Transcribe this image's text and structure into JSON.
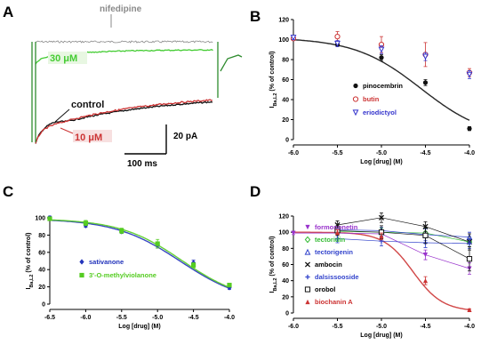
{
  "panels": {
    "A": {
      "letter": "A",
      "labels": {
        "nifedipine": "nifedipine",
        "c30": "30 μM",
        "control": "control",
        "c10": "10 μM"
      },
      "scalebar": {
        "current": "20 pA",
        "time": "100 ms"
      },
      "colors": {
        "nifedipine": "#8a8a8a",
        "c30": "#44cc33",
        "control": "#111111",
        "c10": "#cc3333"
      }
    },
    "B": {
      "letter": "B"
    },
    "C": {
      "letter": "C"
    },
    "D": {
      "letter": "D"
    }
  },
  "chart_data": [
    {
      "panel": "B",
      "type": "scatter",
      "ylabel_main": "I",
      "ylabel_sub": "Ba,L2",
      "ylabel_rest": " (% of control)",
      "xlabel": "Log [drug] (M)",
      "xlim": [
        -6.0,
        -4.0
      ],
      "ylim": [
        0,
        120
      ],
      "xticks": [
        -6.0,
        -5.5,
        -5.0,
        -4.5,
        -4.0
      ],
      "xtick_labels": [
        "-6.0",
        "-5.5",
        "-5.0",
        "-4.5",
        "-4.0"
      ],
      "yticks": [
        0,
        20,
        40,
        60,
        80,
        100,
        120
      ],
      "legend_position": "center-right",
      "series": [
        {
          "name": "pinocembrin",
          "color": "#111111",
          "marker": "circle-filled",
          "fit": true,
          "x": [
            -6.0,
            -5.5,
            -5.0,
            -4.5,
            -4.0
          ],
          "y": [
            102,
            95,
            82,
            57,
            11
          ],
          "err": [
            2,
            2,
            3,
            3,
            2
          ],
          "fit_curve": {
            "top": 102,
            "bottom": 0,
            "logec50": -4.55,
            "hill": 1.15
          }
        },
        {
          "name": "butin",
          "color": "#cc3333",
          "marker": "circle-open",
          "fit": false,
          "x": [
            -6.0,
            -5.5,
            -5.0,
            -4.5,
            -4.0
          ],
          "y": [
            101,
            103,
            95,
            85,
            67
          ],
          "err": [
            2,
            5,
            8,
            12,
            4
          ]
        },
        {
          "name": "eriodictyol",
          "color": "#3333cc",
          "marker": "triangle-down-open",
          "fit": false,
          "x": [
            -6.0,
            -5.5,
            -5.0,
            -4.5,
            -4.0
          ],
          "y": [
            102,
            96,
            90,
            83,
            65
          ],
          "err": [
            2,
            3,
            4,
            4,
            4
          ]
        }
      ]
    },
    {
      "panel": "C",
      "type": "scatter",
      "ylabel_main": "I",
      "ylabel_sub": "Ba,L2",
      "ylabel_rest": " (% of control)",
      "xlabel": "Log [drug] (M)",
      "xlim": [
        -6.5,
        -4.0
      ],
      "ylim": [
        0,
        100
      ],
      "xticks": [
        -6.5,
        -6.0,
        -5.5,
        -5.0,
        -4.5,
        -4.0
      ],
      "xtick_labels": [
        "-6.5",
        "-6.0",
        "-5.5",
        "-5.0",
        "-4.5",
        "-4.0"
      ],
      "yticks": [
        0,
        20,
        40,
        60,
        80,
        100
      ],
      "legend_position": "bottom-left",
      "series": [
        {
          "name": "sativanone",
          "color": "#2233bb",
          "marker": "diamond-filled",
          "fit": true,
          "x": [
            -6.5,
            -6.0,
            -5.5,
            -5.0,
            -4.5,
            -4.0
          ],
          "y": [
            100,
            91,
            84,
            68,
            48,
            19
          ],
          "err": [
            2,
            2,
            2,
            3,
            3,
            2
          ],
          "fit_curve": {
            "top": 99,
            "bottom": 0,
            "logec50": -4.68,
            "hill": 0.95
          }
        },
        {
          "name": "3'-O-methylviolanone",
          "color": "#55cc22",
          "marker": "square-filled",
          "fit": true,
          "x": [
            -6.5,
            -6.0,
            -5.5,
            -5.0,
            -4.5,
            -4.0
          ],
          "y": [
            99,
            94,
            85,
            70,
            45,
            22
          ],
          "err": [
            2,
            3,
            3,
            5,
            3,
            2
          ],
          "fit_curve": {
            "top": 99,
            "bottom": 2,
            "logec50": -4.66,
            "hill": 1.0
          }
        }
      ]
    },
    {
      "panel": "D",
      "type": "scatter",
      "ylabel_main": "I",
      "ylabel_sub": "Ba,L2",
      "ylabel_rest": " (% of control)",
      "xlabel": "Log [drug] (M)",
      "xlim": [
        -6.0,
        -4.0
      ],
      "ylim": [
        0,
        120
      ],
      "xticks": [
        -6.0,
        -5.5,
        -5.0,
        -4.5,
        -4.0
      ],
      "xtick_labels": [
        "-6.0",
        "-5.5",
        "-5.0",
        "-4.5",
        "-4.0"
      ],
      "yticks": [
        0,
        20,
        40,
        60,
        80,
        100,
        120
      ],
      "legend_position": "center-left",
      "series": [
        {
          "name": "formononetin",
          "color": "#9933cc",
          "marker": "triangle-down-filled",
          "fit": false,
          "x": [
            -6.0,
            -5.5,
            -5.0,
            -4.5,
            -4.0
          ],
          "y": [
            99,
            99,
            98,
            72,
            55
          ],
          "err": [
            2,
            3,
            4,
            6,
            7
          ]
        },
        {
          "name": "tectoridin",
          "color": "#33bb33",
          "marker": "diamond-open",
          "fit": false,
          "x": [
            -5.5,
            -5.0,
            -4.5,
            -4.0
          ],
          "y": [
            101,
            100,
            99,
            88
          ],
          "err": [
            4,
            5,
            6,
            6
          ]
        },
        {
          "name": "tectorigenin",
          "color": "#3344cc",
          "marker": "triangle-up-open",
          "fit": false,
          "x": [
            -5.5,
            -5.0,
            -4.5,
            -4.0
          ],
          "y": [
            103,
            102,
            97,
            94
          ],
          "err": [
            5,
            4,
            7,
            6
          ]
        },
        {
          "name": "ambocin",
          "color": "#111111",
          "marker": "x",
          "fit": false,
          "x": [
            -5.5,
            -5.0,
            -4.5,
            -4.0
          ],
          "y": [
            109,
            118,
            107,
            88
          ],
          "err": [
            5,
            6,
            6,
            10
          ]
        },
        {
          "name": "dalsissooside",
          "color": "#3344cc",
          "marker": "plus",
          "fit": false,
          "x": [
            -5.5,
            -5.0,
            -4.5,
            -4.0
          ],
          "y": [
            92,
            89,
            87,
            86
          ],
          "err": [
            5,
            6,
            6,
            6
          ]
        },
        {
          "name": "orobol",
          "color": "#111111",
          "marker": "square-open",
          "fit": false,
          "x": [
            -5.5,
            -5.0,
            -4.5,
            -4.0
          ],
          "y": [
            102,
            100,
            96,
            67
          ],
          "err": [
            6,
            8,
            10,
            15
          ]
        },
        {
          "name": "biochanin A",
          "color": "#cc3333",
          "marker": "triangle-up-filled",
          "fit": true,
          "x": [
            -5.5,
            -5.0,
            -4.5,
            -4.0
          ],
          "y": [
            100,
            95,
            40,
            4
          ],
          "err": [
            3,
            4,
            5,
            1
          ],
          "fit_curve": {
            "top": 100,
            "bottom": 2,
            "logec50": -4.64,
            "hill": 2.6
          }
        }
      ]
    }
  ]
}
